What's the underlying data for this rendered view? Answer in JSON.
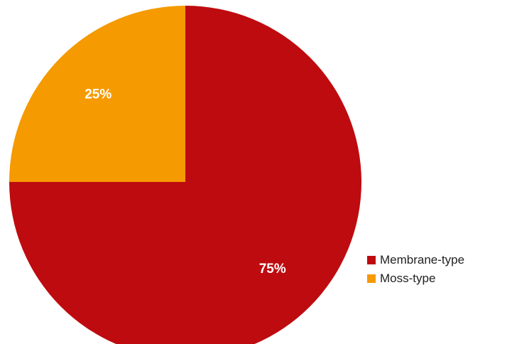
{
  "chart_data": {
    "type": "pie",
    "categories": [
      "Membrane-type",
      "Moss-type"
    ],
    "values": [
      75,
      25
    ],
    "labels": [
      "75%",
      "25%"
    ],
    "colors": [
      "#be0b0f",
      "#f59a00"
    ],
    "legend_position": "bottom-right",
    "start_angle": "12 o'clock",
    "direction": "clockwise"
  }
}
